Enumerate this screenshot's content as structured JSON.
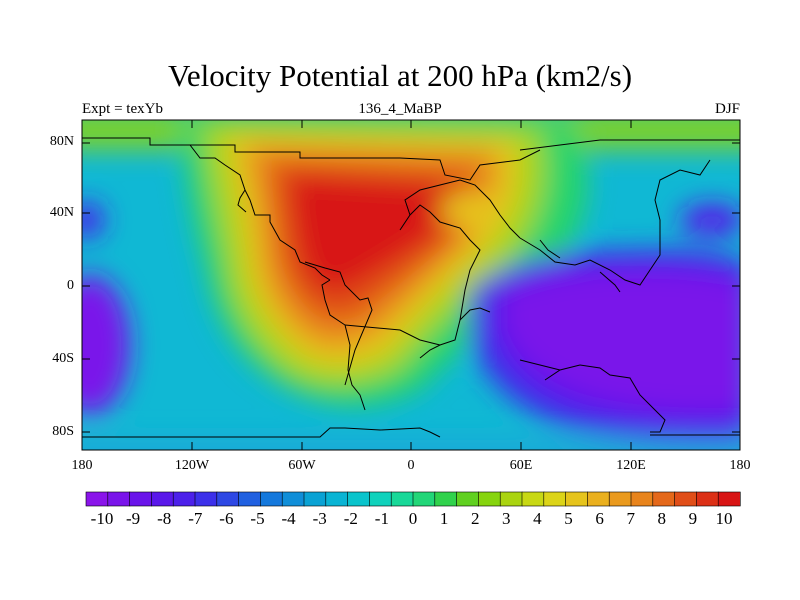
{
  "title": "Velocity Potential at 200 hPa (km2/s)",
  "subtitle_left": "Expt = texYb",
  "subtitle_center": "136_4_MaBP",
  "subtitle_right": "DJF",
  "lat_labels": [
    "80N",
    "40N",
    "0",
    "40S",
    "80S"
  ],
  "lon_labels": [
    "180",
    "120W",
    "60W",
    "0",
    "60E",
    "120E",
    "180"
  ],
  "colorbar_labels": [
    "-10",
    "-9",
    "-8",
    "-7",
    "-6",
    "-5",
    "-4",
    "-3",
    "-2",
    "-1",
    "0",
    "1",
    "2",
    "3",
    "4",
    "5",
    "6",
    "7",
    "8",
    "9",
    "10"
  ],
  "colorbar_colors": [
    "#8a14ea",
    "#7a14ea",
    "#6a14ea",
    "#5a18ea",
    "#4c20ea",
    "#3c30ea",
    "#2e48e4",
    "#2060e0",
    "#1478dc",
    "#108ed8",
    "#0aa2d4",
    "#0ab4d4",
    "#0ac4cc",
    "#10d2bc",
    "#18d898",
    "#22d678",
    "#30d24c",
    "#60d020",
    "#86d40e",
    "#aad410",
    "#c8d814",
    "#dcd418",
    "#e6c41c",
    "#eab01e",
    "#ea9a1e",
    "#e8841c",
    "#e4681a",
    "#e04e18",
    "#dc3016",
    "#d81414"
  ],
  "projection": "cylindrical equidistant",
  "lon_range": [
    -180,
    180
  ],
  "lat_range": [
    -90,
    90
  ],
  "features": [
    "continental outlines"
  ]
}
